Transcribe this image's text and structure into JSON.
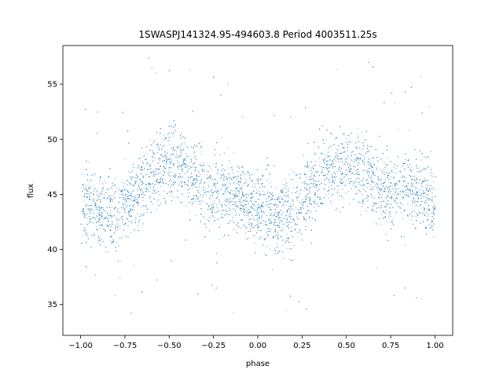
{
  "chart_data": {
    "type": "scatter",
    "title": "1SWASPJ141324.95-494603.8 Period 4003511.25s",
    "xlabel": "phase",
    "ylabel": "flux",
    "xlim": [
      -1.1,
      1.1
    ],
    "ylim": [
      32.2,
      58.5
    ],
    "x_ticks": [
      -1.0,
      -0.75,
      -0.5,
      -0.25,
      0.0,
      0.25,
      0.5,
      0.75,
      1.0
    ],
    "x_tick_labels": [
      "−1.00",
      "−0.75",
      "−0.50",
      "−0.25",
      "0.00",
      "0.25",
      "0.50",
      "0.75",
      "1.00"
    ],
    "y_ticks": [
      35,
      40,
      45,
      50,
      55
    ],
    "y_tick_labels": [
      "35",
      "40",
      "45",
      "50",
      "55"
    ],
    "grid": false,
    "legend": "none",
    "point_color": "#1f77b4",
    "series": [
      {
        "x": [
          -1.0,
          -0.9,
          -0.8,
          -0.75,
          -0.7,
          -0.6,
          -0.5,
          -0.45,
          -0.4,
          -0.3,
          -0.25,
          -0.2,
          -0.1,
          -0.05,
          0.0,
          0.1,
          0.2,
          0.25,
          0.3,
          0.4,
          0.5,
          0.55,
          0.6,
          0.7,
          0.75,
          0.8,
          0.9,
          1.0
        ],
        "y": [
          44.0,
          43.5,
          43.0,
          44.0,
          45.0,
          47.0,
          48.0,
          48.0,
          47.0,
          45.5,
          45.0,
          45.5,
          45.0,
          44.0,
          43.5,
          43.0,
          43.5,
          44.5,
          45.5,
          47.0,
          47.5,
          48.0,
          47.0,
          45.5,
          45.0,
          46.0,
          45.5,
          44.0
        ],
        "spread": [
          3.0,
          3.0,
          3.0,
          3.0,
          3.0,
          3.0,
          3.0,
          3.0,
          3.0,
          3.0,
          3.0,
          3.0,
          3.0,
          3.0,
          3.0,
          3.0,
          3.0,
          3.0,
          3.0,
          3.0,
          3.0,
          3.0,
          3.0,
          3.0,
          3.0,
          3.0,
          3.0,
          3.0
        ]
      }
    ]
  }
}
